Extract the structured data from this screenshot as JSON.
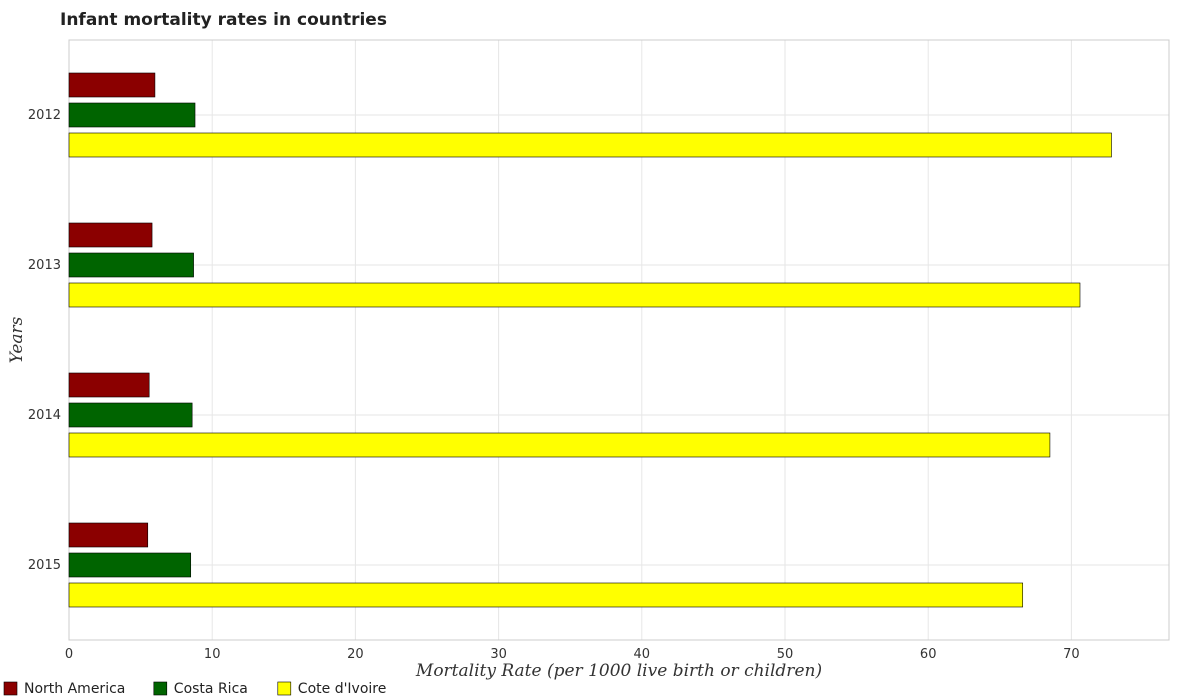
{
  "chart_data": {
    "type": "bar",
    "orientation": "horizontal",
    "title": "Infant mortality rates in countries",
    "xlabel": "Mortality Rate (per 1000 live birth or children)",
    "ylabel": "Years",
    "categories": [
      "2012",
      "2013",
      "2014",
      "2015"
    ],
    "x_ticks": [
      "0",
      "10",
      "20",
      "30",
      "40",
      "50",
      "60",
      "70"
    ],
    "xlim": [
      0,
      76
    ],
    "grid": true,
    "legend_position": "bottom-left",
    "series": [
      {
        "name": "North America",
        "color": "#8b0000",
        "values": [
          6.0,
          5.8,
          5.6,
          5.5
        ]
      },
      {
        "name": "Costa Rica",
        "color": "#006400",
        "values": [
          8.8,
          8.7,
          8.6,
          8.5
        ]
      },
      {
        "name": "Cote d'Ivoire",
        "color": "#ffff00",
        "values": [
          72.8,
          70.6,
          68.5,
          66.6
        ]
      }
    ]
  }
}
